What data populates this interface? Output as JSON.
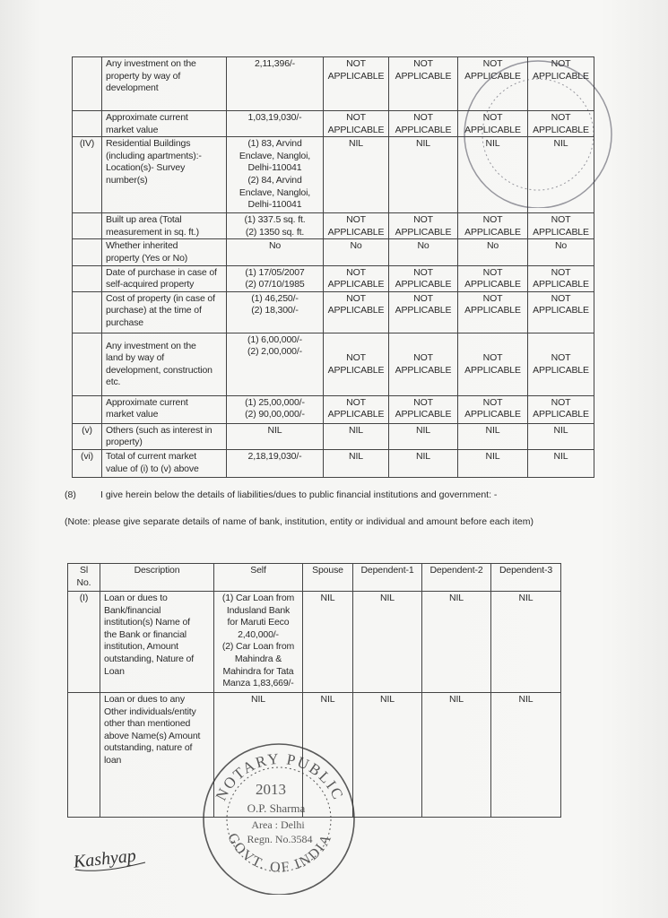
{
  "assets_table": {
    "rows": [
      {
        "sl": "",
        "desc": [
          "Any investment on the",
          "property by way of",
          "development"
        ],
        "self": [
          "2,11,396/-"
        ],
        "others": [
          [
            "NOT",
            "APPLICABLE"
          ],
          [
            "NOT",
            "APPLICABLE"
          ],
          [
            "NOT",
            "APPLICABLE"
          ],
          [
            "NOT",
            "APPLICABLE"
          ]
        ]
      },
      {
        "sl": "",
        "desc": [
          "Approximate current",
          "market value"
        ],
        "self": [
          "1,03,19,030/-"
        ],
        "others": [
          [
            "NOT",
            "APPLICABLE"
          ],
          [
            "NOT",
            "APPLICABLE"
          ],
          [
            "NOT",
            "APPLICABLE"
          ],
          [
            "NOT",
            "APPLICABLE"
          ]
        ]
      },
      {
        "sl": "(IV)",
        "desc": [
          "Residential Buildings",
          "(including apartments):-",
          "Location(s)- Survey",
          "number(s)"
        ],
        "self": [
          "(1) 83, Arvind",
          "Enclave, Nangloi,",
          "Delhi-110041",
          "(2) 84, Arvind",
          "Enclave, Nangloi,",
          "Delhi-110041"
        ],
        "others": [
          [
            "NIL"
          ],
          [
            "NIL"
          ],
          [
            "NIL"
          ],
          [
            "NIL"
          ]
        ]
      },
      {
        "sl": "",
        "desc": [
          "Built up area (Total",
          "measurement in sq. ft.)"
        ],
        "self": [
          "(1) 337.5 sq. ft.",
          "(2) 1350 sq. ft."
        ],
        "others": [
          [
            "NOT",
            "APPLICABLE"
          ],
          [
            "NOT",
            "APPLICABLE"
          ],
          [
            "NOT",
            "APPLICABLE"
          ],
          [
            "NOT",
            "APPLICABLE"
          ]
        ]
      },
      {
        "sl": "",
        "desc": [
          "Whether inherited",
          "property (Yes or No)"
        ],
        "self": [
          "No"
        ],
        "others": [
          [
            "No"
          ],
          [
            "No"
          ],
          [
            "No"
          ],
          [
            "No"
          ]
        ]
      },
      {
        "sl": "",
        "desc": [
          "Date of purchase in case of",
          "self-acquired property"
        ],
        "self": [
          "(1) 17/05/2007",
          "(2) 07/10/1985"
        ],
        "others": [
          [
            "NOT",
            "APPLICABLE"
          ],
          [
            "NOT",
            "APPLICABLE"
          ],
          [
            "NOT",
            "APPLICABLE"
          ],
          [
            "NOT",
            "APPLICABLE"
          ]
        ]
      },
      {
        "sl": "",
        "desc": [
          "Cost of property (in case of",
          "purchase) at the time of",
          "purchase"
        ],
        "self": [
          "(1) 46,250/-",
          "(2) 18,300/-"
        ],
        "others": [
          [
            "NOT",
            "APPLICABLE"
          ],
          [
            "NOT",
            "APPLICABLE"
          ],
          [
            "NOT",
            "APPLICABLE"
          ],
          [
            "NOT",
            "APPLICABLE"
          ]
        ]
      },
      {
        "sl": "",
        "desc": [
          "Any investment on the",
          "land by way of",
          "development, construction",
          "etc."
        ],
        "self": [
          "(1) 6,00,000/-",
          "(2) 2,00,000/-"
        ],
        "others": [
          [
            "NOT",
            "APPLICABLE"
          ],
          [
            "NOT",
            "APPLICABLE"
          ],
          [
            "NOT",
            "APPLICABLE"
          ],
          [
            "NOT",
            "APPLICABLE"
          ]
        ]
      },
      {
        "sl": "",
        "desc": [
          "Approximate current",
          "market value"
        ],
        "self": [
          "(1) 25,00,000/-",
          "(2) 90,00,000/-"
        ],
        "others": [
          [
            "NOT",
            "APPLICABLE"
          ],
          [
            "NOT",
            "APPLICABLE"
          ],
          [
            "NOT",
            "APPLICABLE"
          ],
          [
            "NOT",
            "APPLICABLE"
          ]
        ]
      },
      {
        "sl": "(v)",
        "desc": [
          "Others (such as interest in",
          "property)"
        ],
        "self": [
          "NIL"
        ],
        "others": [
          [
            "NIL"
          ],
          [
            "NIL"
          ],
          [
            "NIL"
          ],
          [
            "NIL"
          ]
        ]
      },
      {
        "sl": "(vi)",
        "desc": [
          "Total of current market",
          "value of (i) to (v) above"
        ],
        "self": [
          "2,18,19,030/-"
        ],
        "others": [
          [
            "NIL"
          ],
          [
            "NIL"
          ],
          [
            "NIL"
          ],
          [
            "NIL"
          ]
        ]
      }
    ]
  },
  "section8": {
    "number": "(8)",
    "text": "I give herein below the details of liabilities/dues to public financial institutions and government: -",
    "note": "(Note: please give separate details of name of bank, institution, entity or individual and amount before each item)"
  },
  "liabilities_table": {
    "headers": [
      [
        "Sl",
        "No."
      ],
      [
        "Description"
      ],
      [
        "Self"
      ],
      [
        "Spouse"
      ],
      [
        "Dependent-1"
      ],
      [
        "Dependent-2"
      ],
      [
        "Dependent-3"
      ]
    ],
    "rows": [
      {
        "sl": "(I)",
        "desc": [
          "Loan or dues to",
          "Bank/financial",
          "institution(s) Name of",
          "the Bank or financial",
          "institution, Amount",
          "outstanding, Nature of",
          "Loan"
        ],
        "self": [
          "(1) Car Loan from",
          "Indusland Bank",
          "for Maruti Eeco",
          "2,40,000/-",
          "(2) Car Loan from",
          "Mahindra &",
          "Mahindra for Tata",
          "Manza 1,83,669/-"
        ],
        "others": [
          [
            "NIL"
          ],
          [
            "NIL"
          ],
          [
            "NIL"
          ],
          [
            "NIL"
          ]
        ]
      },
      {
        "sl": "",
        "desc": [
          "Loan or dues to any",
          "Other individuals/entity",
          "other than mentioned",
          "above Name(s) Amount",
          "outstanding, nature of",
          "loan"
        ],
        "self": [
          "NIL"
        ],
        "others": [
          [
            "NIL"
          ],
          [
            "NIL"
          ],
          [
            "NIL"
          ],
          [
            "NIL"
          ]
        ]
      }
    ]
  },
  "stamp": {
    "top_text": "NOTARY PUBLIC",
    "year": "2013",
    "name": "O.P. Sharma",
    "area": "Area : Delhi",
    "regn": "Regn. No.3584",
    "bottom_text": "GOVT. OF INDIA",
    "ink_color": "#3a3a4a"
  },
  "signature": {
    "text": "Kashyap"
  }
}
